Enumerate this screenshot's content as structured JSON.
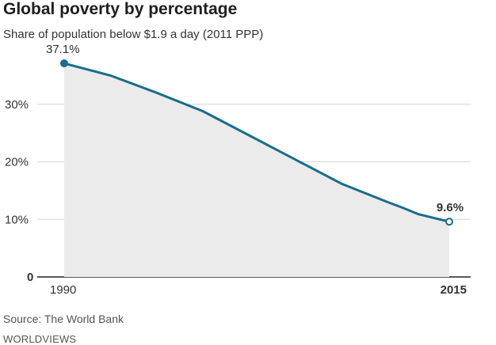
{
  "chart_data": {
    "type": "area",
    "title": "Global poverty by percentage",
    "subtitle": "Share of population below $1.9 a day (2011 PPP)",
    "x": [
      1990,
      1993,
      1996,
      1999,
      2002,
      2005,
      2008,
      2011,
      2012,
      2013,
      2015
    ],
    "series": [
      {
        "values": [
          37.1,
          35.0,
          32.0,
          28.8,
          24.6,
          20.4,
          16.2,
          13.0,
          12.0,
          10.9,
          9.6
        ],
        "color": "#166f8b"
      }
    ],
    "ylim": [
      0,
      40
    ],
    "xlim": [
      1990,
      2015
    ],
    "y_ticks": [
      {
        "value": 0,
        "label": "0"
      },
      {
        "value": 10,
        "label": "10%"
      },
      {
        "value": 20,
        "label": "20%"
      },
      {
        "value": 30,
        "label": "30%"
      }
    ],
    "x_ticks": [
      {
        "value": 1990,
        "label": "1990"
      },
      {
        "value": 2015,
        "label": "2015"
      }
    ],
    "annotations": [
      {
        "x": 1990,
        "y": 37.1,
        "label": "37.1%"
      },
      {
        "x": 2015,
        "y": 9.6,
        "label": "9.6%"
      }
    ],
    "grid": true,
    "fill_color": "#ebebeb"
  },
  "footer": {
    "source": "Source: The World Bank",
    "brand": "WORLDVIEWS"
  }
}
